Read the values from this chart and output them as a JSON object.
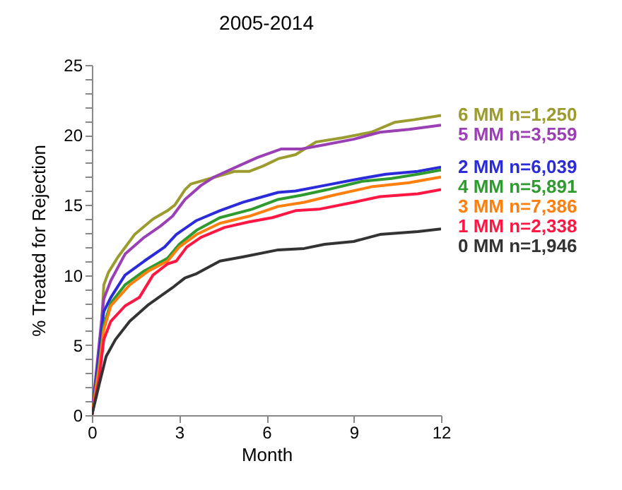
{
  "chart_data": {
    "type": "line",
    "title": "2005-2014",
    "xlabel": "Month",
    "ylabel": "% Treated for Rejection",
    "xlim": [
      0,
      12
    ],
    "xticks": [
      0,
      3,
      6,
      9,
      12
    ],
    "ylim": [
      0,
      25
    ],
    "yticks": [
      0,
      {
        "value": 1,
        "label": null
      },
      {
        "value": 2,
        "label": null
      },
      {
        "value": 3,
        "label": null
      },
      {
        "value": 4,
        "label": null
      },
      5,
      {
        "value": 6,
        "label": null
      },
      {
        "value": 7,
        "label": null
      },
      {
        "value": 8,
        "label": null
      },
      {
        "value": 9,
        "label": null
      },
      10,
      {
        "value": 11,
        "label": null
      },
      {
        "value": 12,
        "label": null
      },
      {
        "value": 13,
        "label": null
      },
      {
        "value": 14,
        "label": null
      },
      15,
      {
        "value": 16,
        "label": null
      },
      {
        "value": 17,
        "label": null
      },
      {
        "value": 18,
        "label": null
      },
      {
        "value": 19,
        "label": null
      },
      20,
      {
        "value": 21,
        "label": null
      },
      {
        "value": 22,
        "label": null
      },
      {
        "value": 23,
        "label": null
      },
      {
        "value": 24,
        "label": null
      },
      25
    ],
    "grid": false,
    "legend": "right",
    "marker": "none",
    "line_style": "solid",
    "series": [
      {
        "name": "6 MM n=1,250",
        "color": "#9b9b2e",
        "x": [
          0,
          0.24,
          0.41,
          0.57,
          0.9,
          1.47,
          2.1,
          2.6,
          2.85,
          3.2,
          3.4,
          4.07,
          4.9,
          5.4,
          5.9,
          6.4,
          7.0,
          7.7,
          8.6,
          9.6,
          10.4,
          11.1,
          12
        ],
        "values": [
          0,
          3.2,
          9.3,
          10.2,
          11.3,
          12.9,
          14.0,
          14.6,
          15.0,
          16.1,
          16.5,
          16.9,
          17.4,
          17.4,
          17.8,
          18.3,
          18.6,
          19.5,
          19.8,
          20.2,
          20.9,
          21.1,
          21.4
        ]
      },
      {
        "name": "5 MM n=3,559",
        "color": "#9b3fb5",
        "x": [
          0,
          0.24,
          0.41,
          0.65,
          1.14,
          1.8,
          2.36,
          2.77,
          3.2,
          3.75,
          4.2,
          5.05,
          5.7,
          6.5,
          7.2,
          8.0,
          9.0,
          9.9,
          10.9,
          12
        ],
        "values": [
          0,
          4.9,
          8.3,
          9.6,
          11.5,
          12.7,
          13.5,
          14.2,
          15.4,
          16.4,
          17.0,
          17.8,
          18.4,
          19.0,
          19.0,
          19.3,
          19.7,
          20.2,
          20.4,
          20.7
        ]
      },
      {
        "name": "2 MM n=6,039",
        "color": "#2b2bd9",
        "x": [
          0,
          0.24,
          0.41,
          0.65,
          1.14,
          1.8,
          2.5,
          2.9,
          3.6,
          4.4,
          5.2,
          6.4,
          7.0,
          8.0,
          9.0,
          10.1,
          11.2,
          12
        ],
        "values": [
          0,
          4.2,
          7.4,
          8.4,
          10.0,
          11.0,
          12.0,
          12.9,
          13.9,
          14.6,
          15.2,
          15.9,
          16.0,
          16.4,
          16.8,
          17.2,
          17.4,
          17.7
        ]
      },
      {
        "name": "4 MM n=5,891",
        "color": "#2f9b2f",
        "x": [
          0,
          0.24,
          0.41,
          0.65,
          1.14,
          1.8,
          2.6,
          3.0,
          3.6,
          4.4,
          5.5,
          6.4,
          7.2,
          8.1,
          9.3,
          10.3,
          11.2,
          12
        ],
        "values": [
          0,
          3.5,
          6.4,
          8.0,
          9.3,
          10.3,
          11.2,
          12.2,
          13.2,
          14.1,
          14.7,
          15.4,
          15.7,
          16.1,
          16.7,
          16.9,
          17.2,
          17.5
        ]
      },
      {
        "name": "3 MM n=7,386",
        "color": "#ff7f0e",
        "x": [
          0,
          0.24,
          0.41,
          0.65,
          1.3,
          1.95,
          2.6,
          3.0,
          3.6,
          4.4,
          5.4,
          6.4,
          7.3,
          8.3,
          9.6,
          10.9,
          12
        ],
        "values": [
          0,
          3.2,
          6.1,
          7.8,
          9.3,
          10.3,
          11.0,
          12.0,
          12.9,
          13.7,
          14.2,
          14.9,
          15.2,
          15.7,
          16.3,
          16.6,
          17.0
        ]
      },
      {
        "name": "1 MM n=2,338",
        "color": "#ff1744",
        "x": [
          0,
          0.24,
          0.41,
          0.65,
          1.14,
          1.63,
          2.1,
          2.6,
          2.9,
          3.26,
          3.75,
          4.56,
          5.4,
          6.2,
          7.0,
          7.8,
          9.0,
          9.9,
          11.2,
          12
        ],
        "values": [
          0,
          2.5,
          5.4,
          6.7,
          7.8,
          8.4,
          10.0,
          10.8,
          11.0,
          12.0,
          12.7,
          13.4,
          13.8,
          14.1,
          14.6,
          14.7,
          15.2,
          15.6,
          15.8,
          16.1
        ]
      },
      {
        "name": "0 MM n=1,946",
        "color": "#333333",
        "x": [
          0,
          0.24,
          0.49,
          0.81,
          1.3,
          1.95,
          2.77,
          3.2,
          3.6,
          4.4,
          5.2,
          6.4,
          7.3,
          8.0,
          9.0,
          9.9,
          11.2,
          12
        ],
        "values": [
          0,
          2.1,
          4.2,
          5.4,
          6.7,
          7.9,
          9.1,
          9.8,
          10.1,
          11.0,
          11.3,
          11.8,
          11.9,
          12.2,
          12.4,
          12.9,
          13.1,
          13.3
        ]
      }
    ]
  }
}
